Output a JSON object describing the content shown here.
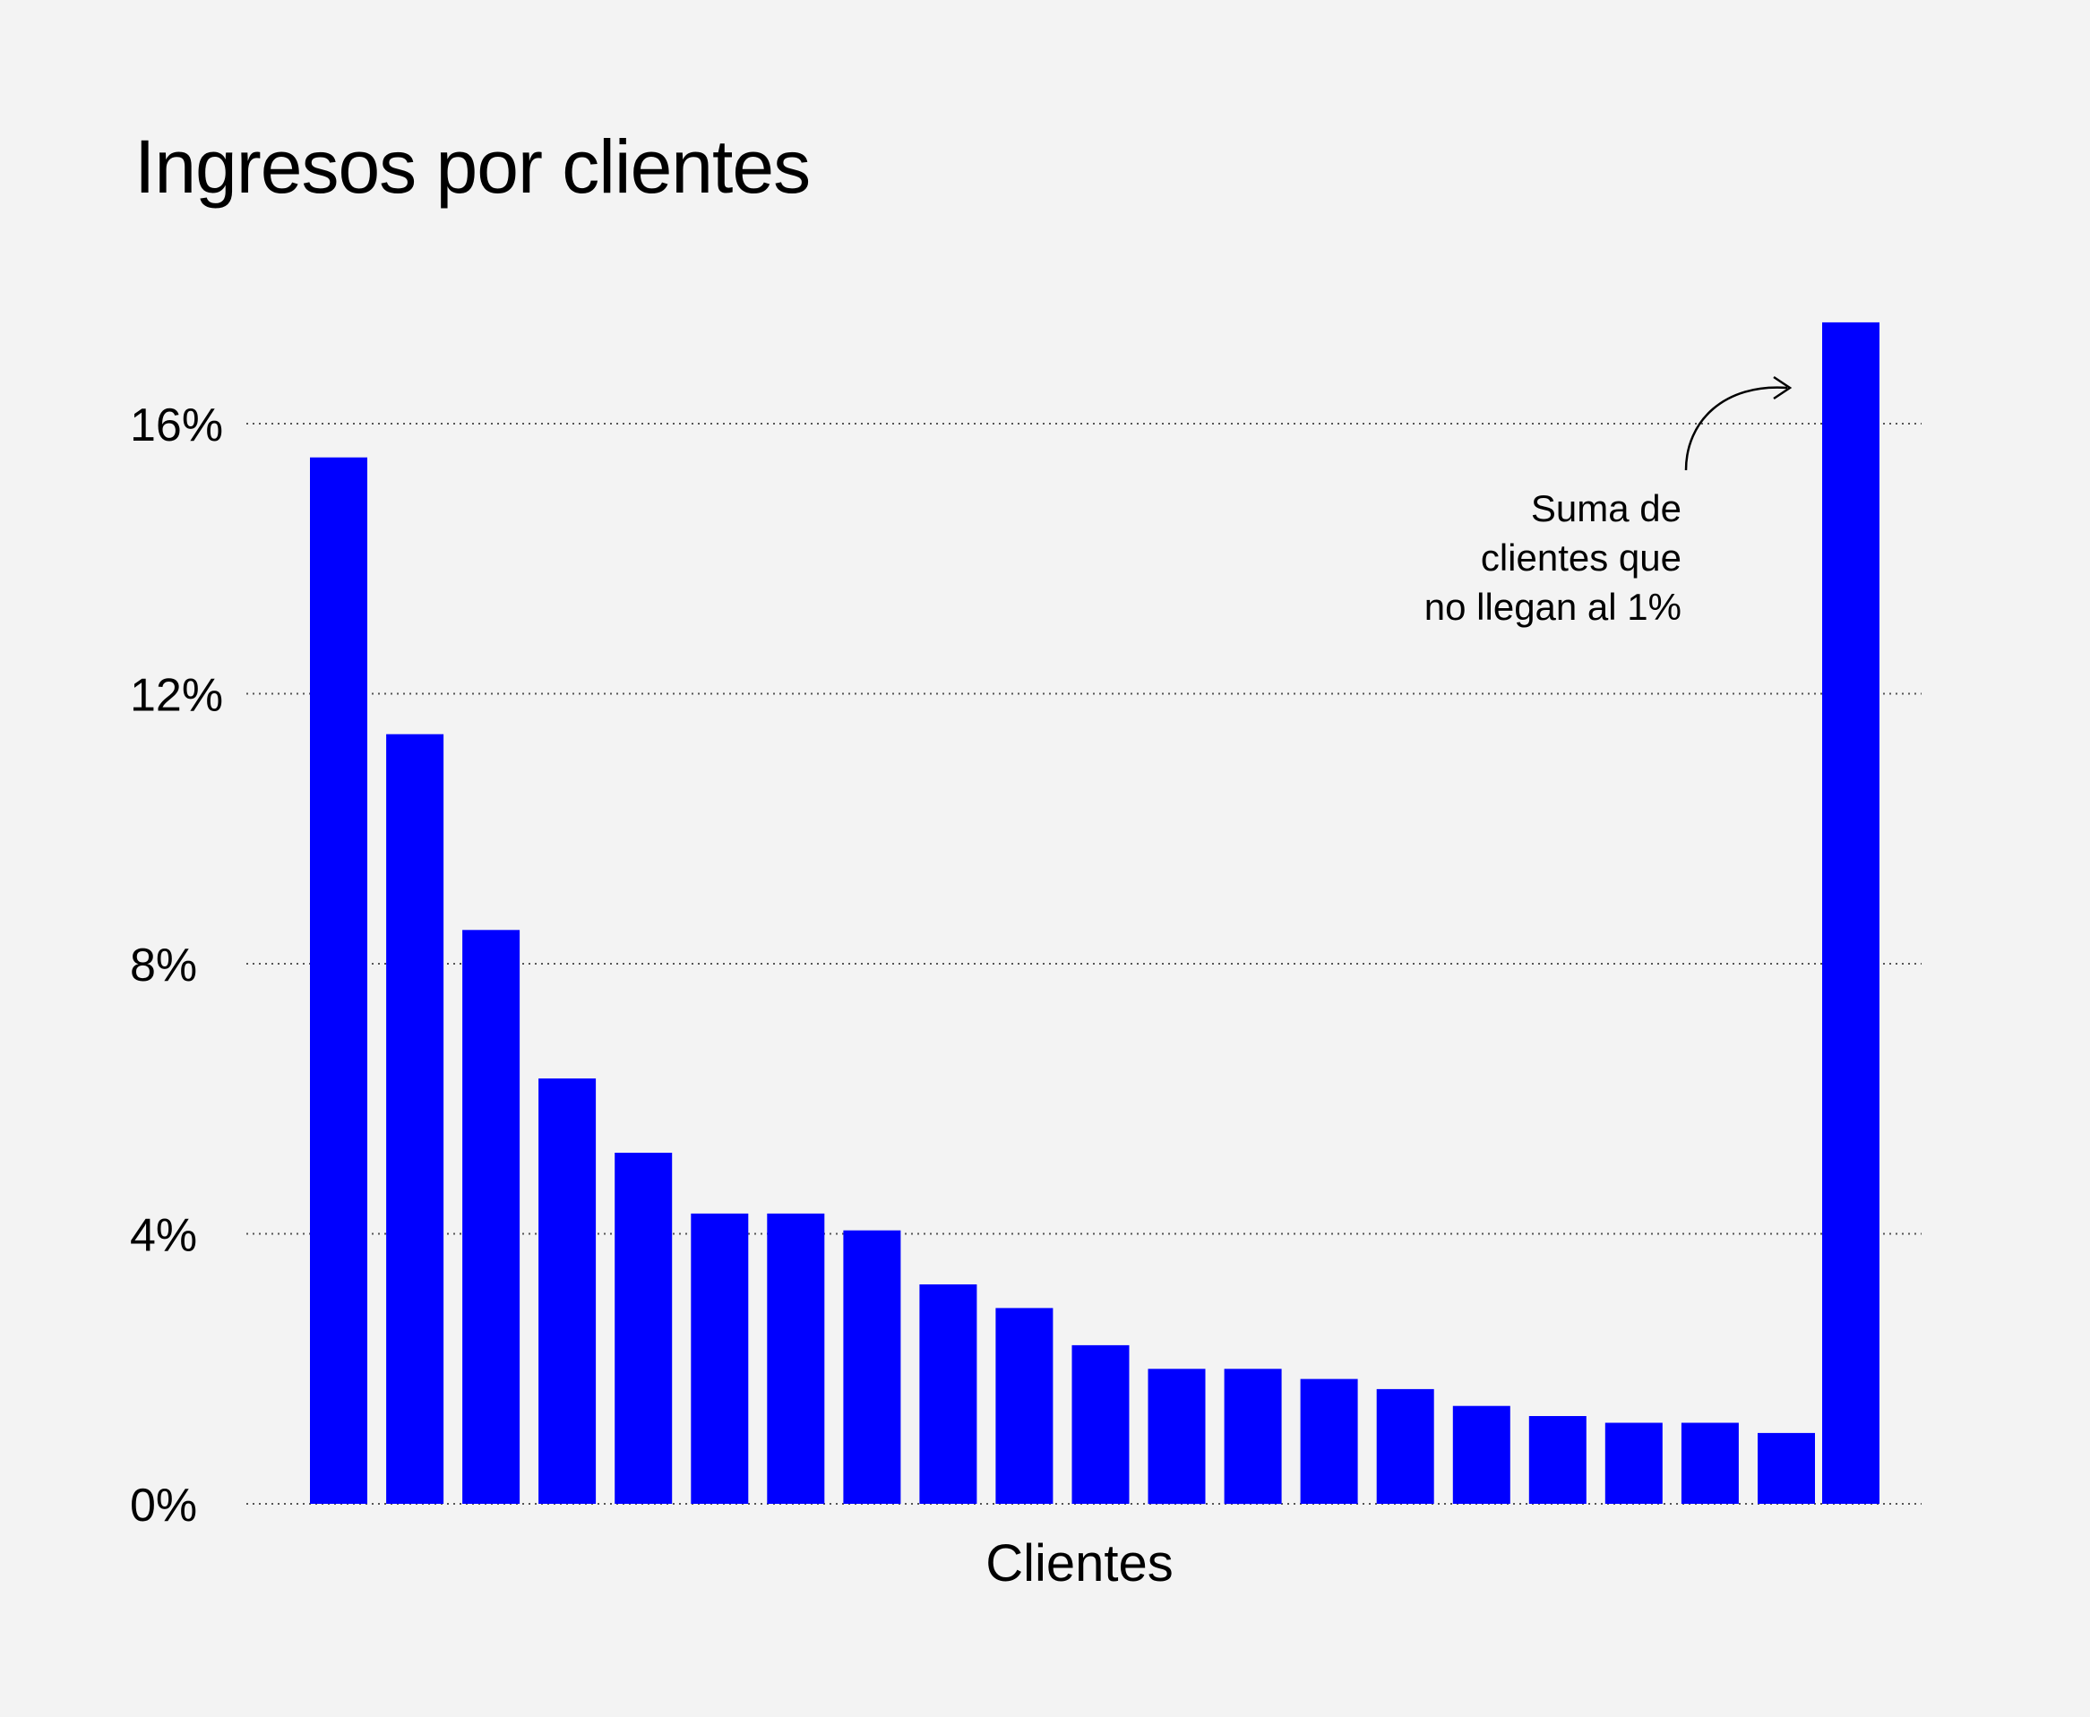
{
  "chart_data": {
    "type": "bar",
    "title": "Ingresos por clientes",
    "xlabel": "Clientes",
    "ylabel": "",
    "ylim": [
      0,
      16
    ],
    "yticks": [
      {
        "value": 0,
        "label": "0%"
      },
      {
        "value": 4,
        "label": "4%"
      },
      {
        "value": 8,
        "label": "8%"
      },
      {
        "value": 12,
        "label": "12%"
      },
      {
        "value": 16,
        "label": "16%"
      }
    ],
    "grid": true,
    "bar_color": "#0000ff",
    "values": [
      15.5,
      11.4,
      8.5,
      6.3,
      5.2,
      4.3,
      4.3,
      4.05,
      3.25,
      2.9,
      2.35,
      2.0,
      2.0,
      1.85,
      1.7,
      1.45,
      1.3,
      1.2,
      1.2,
      1.05,
      17.5
    ],
    "annotation": {
      "lines": [
        "Suma de",
        "clientes que",
        "no llegan al 1%"
      ],
      "target_index": 20
    }
  }
}
